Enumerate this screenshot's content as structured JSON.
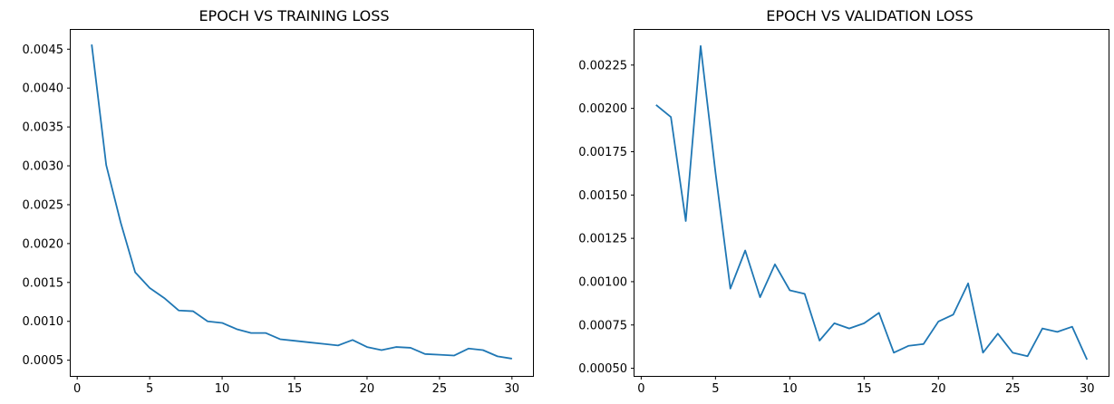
{
  "colors": {
    "series": "#1f77b4"
  },
  "chart_data": [
    {
      "type": "line",
      "title": "EPOCH VS TRAINING LOSS",
      "xlabel": "",
      "ylabel": "",
      "grid": false,
      "xlim": [
        -0.45,
        31.45
      ],
      "ylim": [
        0.000298,
        0.004748
      ],
      "xticks": [
        0,
        5,
        10,
        15,
        20,
        25,
        30
      ],
      "yticks": [
        0.0005,
        0.001,
        0.0015,
        0.002,
        0.0025,
        0.003,
        0.0035,
        0.004,
        0.0045
      ],
      "xtick_labels": [
        "0",
        "5",
        "10",
        "15",
        "20",
        "25",
        "30"
      ],
      "ytick_labels": [
        "0.0005",
        "0.0010",
        "0.0015",
        "0.0020",
        "0.0025",
        "0.0030",
        "0.0035",
        "0.0040",
        "0.0045"
      ],
      "x": [
        1,
        2,
        3,
        4,
        5,
        6,
        7,
        8,
        9,
        10,
        11,
        12,
        13,
        14,
        15,
        16,
        17,
        18,
        19,
        20,
        21,
        22,
        23,
        24,
        25,
        26,
        27,
        28,
        29,
        30
      ],
      "series": [
        {
          "values": [
            0.00456,
            0.00301,
            0.00227,
            0.00163,
            0.00143,
            0.0013,
            0.00114,
            0.00113,
            0.001,
            0.00098,
            0.0009,
            0.00085,
            0.00085,
            0.00077,
            0.00075,
            0.00073,
            0.00071,
            0.00069,
            0.00076,
            0.00067,
            0.00063,
            0.00067,
            0.00066,
            0.00058,
            0.00057,
            0.00056,
            0.00065,
            0.00063,
            0.00055,
            0.00052
          ]
        }
      ]
    },
    {
      "type": "line",
      "title": "EPOCH VS VALIDATION LOSS",
      "xlabel": "",
      "ylabel": "",
      "grid": false,
      "xlim": [
        -0.45,
        31.45
      ],
      "ylim": [
        0.000456,
        0.002453
      ],
      "xticks": [
        0,
        5,
        10,
        15,
        20,
        25,
        30
      ],
      "yticks": [
        0.0005,
        0.00075,
        0.001,
        0.00125,
        0.0015,
        0.00175,
        0.002,
        0.00225
      ],
      "xtick_labels": [
        "0",
        "5",
        "10",
        "15",
        "20",
        "25",
        "30"
      ],
      "ytick_labels": [
        "0.00050",
        "0.00075",
        "0.00100",
        "0.00125",
        "0.00150",
        "0.00175",
        "0.00200",
        "0.00225"
      ],
      "x": [
        1,
        2,
        3,
        4,
        5,
        6,
        7,
        8,
        9,
        10,
        11,
        12,
        13,
        14,
        15,
        16,
        17,
        18,
        19,
        20,
        21,
        22,
        23,
        24,
        25,
        26,
        27,
        28,
        29,
        30
      ],
      "series": [
        {
          "values": [
            0.00202,
            0.00195,
            0.00135,
            0.00236,
            0.00163,
            0.00096,
            0.00118,
            0.00091,
            0.0011,
            0.00095,
            0.00093,
            0.00066,
            0.00076,
            0.00073,
            0.00076,
            0.00082,
            0.00059,
            0.00063,
            0.00064,
            0.00077,
            0.00081,
            0.00099,
            0.00059,
            0.0007,
            0.00059,
            0.00057,
            0.00073,
            0.00071,
            0.00074,
            0.00055
          ]
        }
      ]
    }
  ]
}
